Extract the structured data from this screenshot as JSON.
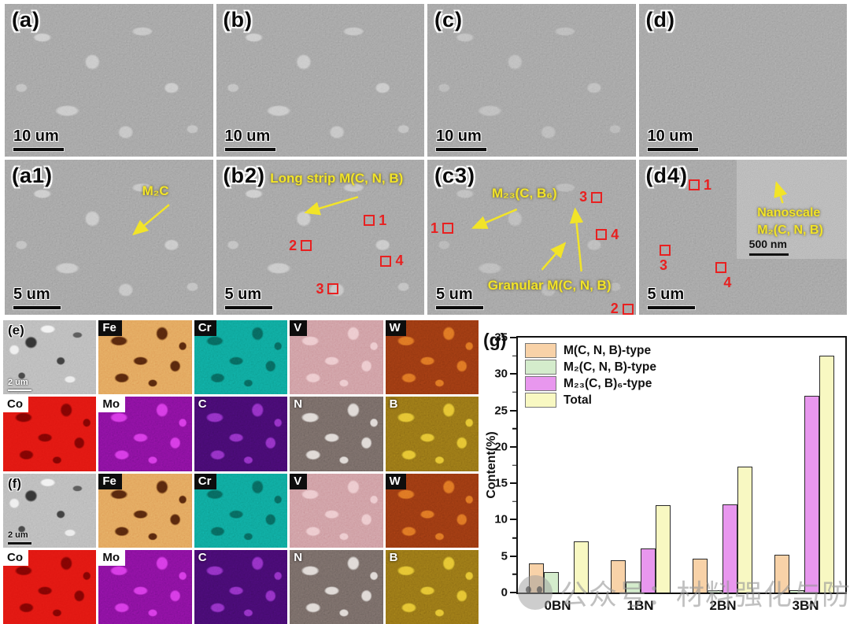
{
  "panels": {
    "row1": [
      {
        "label": "(a)",
        "scalebar": "10 um"
      },
      {
        "label": "(b)",
        "scalebar": "10 um"
      },
      {
        "label": "(c)",
        "scalebar": "10 um"
      },
      {
        "label": "(d)",
        "scalebar": "10 um"
      }
    ],
    "row2": {
      "a1": {
        "label": "(a1)",
        "scalebar": "5 um",
        "annotation": "M₂C"
      },
      "b2": {
        "label": "(b2)",
        "scalebar": "5 um",
        "annotation": "Long strip M(C, N, B)",
        "markers": [
          "1",
          "2",
          "3",
          "4"
        ]
      },
      "c3": {
        "label": "(c3)",
        "scalebar": "5 um",
        "annotation_top": "M₂₃(C, B₆)",
        "annotation_bottom": "Granular  M(C, N, B)",
        "markers": [
          "1",
          "2",
          "3",
          "4"
        ]
      },
      "d4": {
        "label": "(d4)",
        "scalebar": "5 um",
        "annotation_line1": "Nanoscale",
        "annotation_line2": "M₂(C, N, B)",
        "inset_scalebar": "500 nm",
        "markers": [
          "1",
          "3",
          "4"
        ]
      }
    }
  },
  "eds": {
    "e": {
      "label": "(e)",
      "scalebar": "2 um"
    },
    "f": {
      "label": "(f)",
      "scalebar": "2 um"
    },
    "elements": [
      {
        "symbol": "Fe",
        "color": "#df9b55",
        "spot": "#371000",
        "chip": "dark"
      },
      {
        "symbol": "Cr",
        "color": "#0d9c90",
        "spot": "#05544c",
        "chip": "dark"
      },
      {
        "symbol": "V",
        "color": "#c99298",
        "spot": "#f0ccd0",
        "chip": "dark"
      },
      {
        "symbol": "W",
        "color": "#8e3410",
        "spot": "#e87422",
        "chip": "dark"
      },
      {
        "symbol": "Co",
        "color": "#dd1510",
        "spot": "#640000",
        "chip": "light"
      },
      {
        "symbol": "Mo",
        "color": "#7c0f92",
        "spot": "#e03cf0",
        "chip": "light"
      },
      {
        "symbol": "C",
        "color": "#400a66",
        "spot": "#9232cc",
        "chip": "none"
      },
      {
        "symbol": "N",
        "color": "#6b605c",
        "spot": "#efe9e5",
        "chip": "none"
      },
      {
        "symbol": "B",
        "color": "#8a6a14",
        "spot": "#f2cb32",
        "chip": "none"
      }
    ]
  },
  "chart_data": {
    "type": "bar",
    "panel_label": "(g)",
    "ylabel": "Content(%)",
    "ylim": [
      0,
      35
    ],
    "ytick_step": 5,
    "ytick_minor_step": 2.5,
    "grid": false,
    "legend_position": "top-left",
    "categories": [
      "0BN",
      "1BN",
      "2BN",
      "3BN"
    ],
    "series": [
      {
        "name": "M(C, N, B)-type",
        "color": "#f8d2a8",
        "values": [
          4.0,
          4.4,
          4.7,
          5.2
        ]
      },
      {
        "name": "M₂(C, N, B)-type",
        "color": "#d4eccc",
        "values": [
          2.8,
          1.5,
          0.3,
          0.3
        ]
      },
      {
        "name": "M₂₃(C, B)₆-type",
        "color": "#e897ee",
        "values": [
          0,
          6.0,
          12.1,
          27.0
        ]
      },
      {
        "name": "Total",
        "color": "#f8f8c2",
        "values": [
          7.0,
          12.0,
          17.3,
          32.5
        ]
      }
    ]
  },
  "watermark": {
    "text": "公众号：材料强化与防护"
  },
  "colors": {
    "annotation_yellow": "#f2e428",
    "marker_red": "#e82020"
  }
}
